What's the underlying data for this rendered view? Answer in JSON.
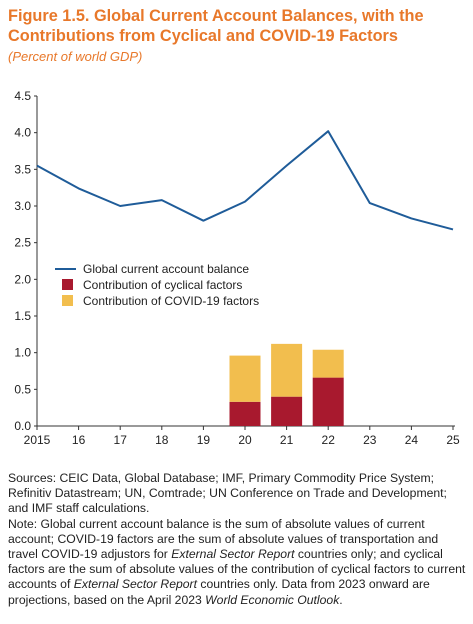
{
  "figure": {
    "title": "Figure 1.5. Global Current Account Balances, with the Contributions from Cyclical and COVID-19 Factors",
    "subtitle": "(Percent of world GDP)"
  },
  "colors": {
    "title": "#E8782A",
    "line": "#1F5C99",
    "cyclical": "#A8192E",
    "covid": "#F2BE4E"
  },
  "chart_data": {
    "type": "line+stacked-bar",
    "title": "Figure 1.5. Global Current Account Balances, with the Contributions from Cyclical and COVID-19 Factors",
    "subtitle": "(Percent of world GDP)",
    "x": [
      "2015",
      "16",
      "17",
      "18",
      "19",
      "20",
      "21",
      "22",
      "23",
      "24",
      "25"
    ],
    "ylim": [
      0,
      4.5
    ],
    "yticks": [
      "0.0",
      "0.5",
      "1.0",
      "1.5",
      "2.0",
      "2.5",
      "3.0",
      "3.5",
      "4.0",
      "4.5"
    ],
    "grid": false,
    "legend_position": "middle-left",
    "series": [
      {
        "name": "Global current account balance",
        "kind": "line",
        "values": [
          3.55,
          3.24,
          3.0,
          3.08,
          2.8,
          3.06,
          3.55,
          4.02,
          3.04,
          2.83,
          2.68
        ]
      },
      {
        "name": "Contribution of cyclical factors",
        "kind": "bar",
        "values": [
          null,
          null,
          null,
          null,
          null,
          0.33,
          0.4,
          0.66,
          null,
          null,
          null
        ]
      },
      {
        "name": "Contribution of COVID-19 factors",
        "kind": "bar",
        "values": [
          null,
          null,
          null,
          null,
          null,
          0.63,
          0.72,
          0.38,
          null,
          null,
          null
        ]
      }
    ]
  },
  "notes": {
    "sources": "Sources: CEIC Data, Global Database; IMF, Primary Commodity Price System; Refinitiv Datastream; UN, Comtrade; UN Conference on Trade and Development; and IMF staff calculations.",
    "note_a": "Note: Global current account balance is the sum of absolute values of current account; COVID-19 factors are the sum of absolute values of transportation and travel COVID-19 adjustors for ",
    "note_a_italic": "External Sector Report",
    "note_b": " countries only; and cyclical factors are the sum of absolute values of the contribution of cyclical factors to current accounts of ",
    "note_b_italic": "External Sector Report",
    "note_c": " countries only. Data from 2023 onward are projections, based on the April 2023 ",
    "note_c_italic": "World Economic Outlook",
    "note_d": "."
  }
}
